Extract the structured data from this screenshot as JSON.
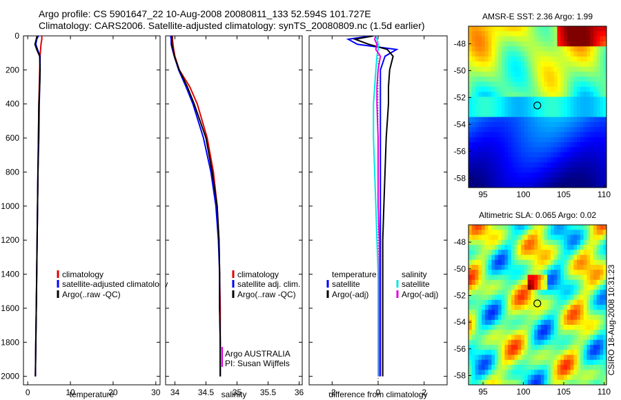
{
  "header": {
    "line1": "Argo profile: CS 5901647_22 10-Aug-2008 20080811_133 52.594S 101.727E",
    "line2": "Climatology: CARS2006. Satellite-adjusted climatology: synTS_20080809.nc (1.5d earlier)"
  },
  "credit": "CSIRO 18-Aug-2008 10:31:23",
  "colors": {
    "red": "#e00000",
    "blue": "#0000ff",
    "black": "#000000",
    "cyan": "#00e5e5",
    "magenta": "#e000e0"
  },
  "chart_data": [
    {
      "type": "line",
      "panel": "temperature",
      "xlabel": "temperature",
      "ylabel": "",
      "xlim": [
        -1,
        31
      ],
      "ylim": [
        2050,
        0
      ],
      "xticks": [
        0,
        10,
        20,
        30
      ],
      "yticks": [
        0,
        200,
        400,
        600,
        800,
        1000,
        1200,
        1400,
        1600,
        1800,
        2000
      ],
      "depth": [
        0,
        20,
        50,
        80,
        120,
        200,
        300,
        400,
        600,
        800,
        1000,
        1200,
        1400,
        1600,
        1800,
        2000
      ],
      "legend": [
        "climatology",
        "satellite-adjusted climatology",
        "Argo(..raw -QC)"
      ],
      "series": [
        {
          "name": "climatology",
          "color": "red",
          "values": [
            3.3,
            3.3,
            3.1,
            3.0,
            2.9,
            2.8,
            2.7,
            2.6,
            2.5,
            2.4,
            2.3,
            2.2,
            2.1,
            2.0,
            1.9,
            1.8
          ]
        },
        {
          "name": "satellite-adjusted climatology",
          "color": "blue",
          "values": [
            2.5,
            2.1,
            1.9,
            2.3,
            2.9,
            2.9,
            2.8,
            2.7,
            2.6,
            2.4,
            2.3,
            2.2,
            2.1,
            2.0,
            1.9,
            1.8
          ]
        },
        {
          "name": "Argo(..raw -QC)",
          "color": "black",
          "values": [
            2.2,
            2.0,
            1.7,
            2.1,
            2.8,
            2.9,
            2.8,
            2.6,
            2.5,
            2.4,
            2.3,
            2.2,
            2.1,
            2.0,
            1.9,
            1.8
          ]
        }
      ]
    },
    {
      "type": "line",
      "panel": "salinity",
      "xlabel": "salinity",
      "xlim": [
        33.85,
        36.05
      ],
      "ylim": [
        2050,
        0
      ],
      "xticks": [
        34,
        34.5,
        35,
        35.5,
        36
      ],
      "depth": [
        0,
        20,
        50,
        80,
        120,
        200,
        300,
        400,
        600,
        800,
        1000,
        1200,
        1400,
        1600,
        1800,
        2000
      ],
      "legend": [
        "climatology",
        "satellite adj. clim.",
        "Argo(..raw -QC)"
      ],
      "annotations": [
        "Argo AUSTRALIA",
        "PI: Susan Wijffels"
      ],
      "series": [
        {
          "name": "climatology",
          "color": "red",
          "values": [
            33.96,
            33.96,
            33.97,
            33.98,
            34.0,
            34.07,
            34.24,
            34.36,
            34.52,
            34.62,
            34.68,
            34.71,
            34.72,
            34.73,
            34.73,
            34.73
          ]
        },
        {
          "name": "satellite adj. clim.",
          "color": "blue",
          "values": [
            33.93,
            33.94,
            33.94,
            33.96,
            33.99,
            34.06,
            34.18,
            34.29,
            34.46,
            34.58,
            34.66,
            34.7,
            34.72,
            34.72,
            34.73,
            34.73
          ]
        },
        {
          "name": "Argo(..raw -QC)",
          "color": "black",
          "values": [
            33.95,
            33.95,
            33.95,
            33.97,
            33.99,
            34.07,
            34.2,
            34.31,
            34.5,
            34.6,
            34.68,
            34.71,
            34.72,
            34.72,
            34.73,
            34.73
          ]
        }
      ]
    },
    {
      "type": "line",
      "panel": "difference",
      "xlabel": "difference from climatology",
      "xlim": [
        -3,
        3
      ],
      "ylim": [
        2050,
        0
      ],
      "xticks": [
        -2,
        0,
        2
      ],
      "depth": [
        0,
        20,
        50,
        80,
        120,
        200,
        300,
        400,
        600,
        800,
        1000,
        1200,
        1400,
        1600,
        1800,
        2000
      ],
      "legend_headers": [
        "temperature",
        "salinity"
      ],
      "legend": [
        "satellite",
        "Argo(-adj)",
        "satellite",
        "Argo(-adj)"
      ],
      "series": [
        {
          "name": "satellite",
          "group": "temperature",
          "color": "blue",
          "values": [
            -0.3,
            -1.3,
            -0.9,
            0.8,
            0.3,
            0.1,
            0.1,
            0.1,
            0.1,
            0.1,
            0.1,
            0.1,
            0.1,
            0.1,
            0.1,
            0.1
          ]
        },
        {
          "name": "Argo(-adj)",
          "group": "temperature",
          "color": "black",
          "values": [
            -0.2,
            -1.0,
            -0.4,
            0.4,
            0.65,
            0.5,
            0.45,
            0.45,
            0.35,
            0.3,
            0.25,
            0.2,
            0.2,
            0.2,
            0.2,
            0.2
          ]
        },
        {
          "name": "satellite",
          "group": "salinity",
          "color": "cyan",
          "values": [
            -0.1,
            -0.05,
            0.0,
            0.0,
            -0.05,
            -0.1,
            -0.15,
            -0.2,
            -0.2,
            -0.15,
            -0.1,
            -0.05,
            0.0,
            0.0,
            0.0,
            0.0
          ]
        },
        {
          "name": "Argo(-adj)",
          "group": "salinity",
          "color": "magenta",
          "values": [
            -0.1,
            -0.15,
            -0.05,
            -0.1,
            0.1,
            0.0,
            -0.05,
            -0.05,
            0.0,
            0.0,
            0.0,
            0.05,
            0.05,
            0.05,
            0.05,
            0.05
          ]
        }
      ]
    },
    {
      "type": "heatmap",
      "panel": "sst-map",
      "title": "AMSR-E SST: 2.36 Argo: 1.99",
      "xlim": [
        93.2,
        110.3
      ],
      "ylim": [
        -58.7,
        -46.7
      ],
      "xticks": [
        95,
        100,
        105,
        110
      ],
      "yticks": [
        -48,
        -50,
        -52,
        -54,
        -56,
        -58
      ],
      "marker": {
        "lon": 101.727,
        "lat": -52.594
      }
    },
    {
      "type": "heatmap",
      "panel": "sla-map",
      "title": "Altimetric SLA: 0.065 Argo: 0.02",
      "xlim": [
        93.2,
        110.3
      ],
      "ylim": [
        -58.7,
        -46.7
      ],
      "xticks": [
        95,
        100,
        105,
        110
      ],
      "yticks": [
        -48,
        -50,
        -52,
        -54,
        -56,
        -58
      ],
      "marker": {
        "lon": 101.727,
        "lat": -52.594
      }
    }
  ]
}
